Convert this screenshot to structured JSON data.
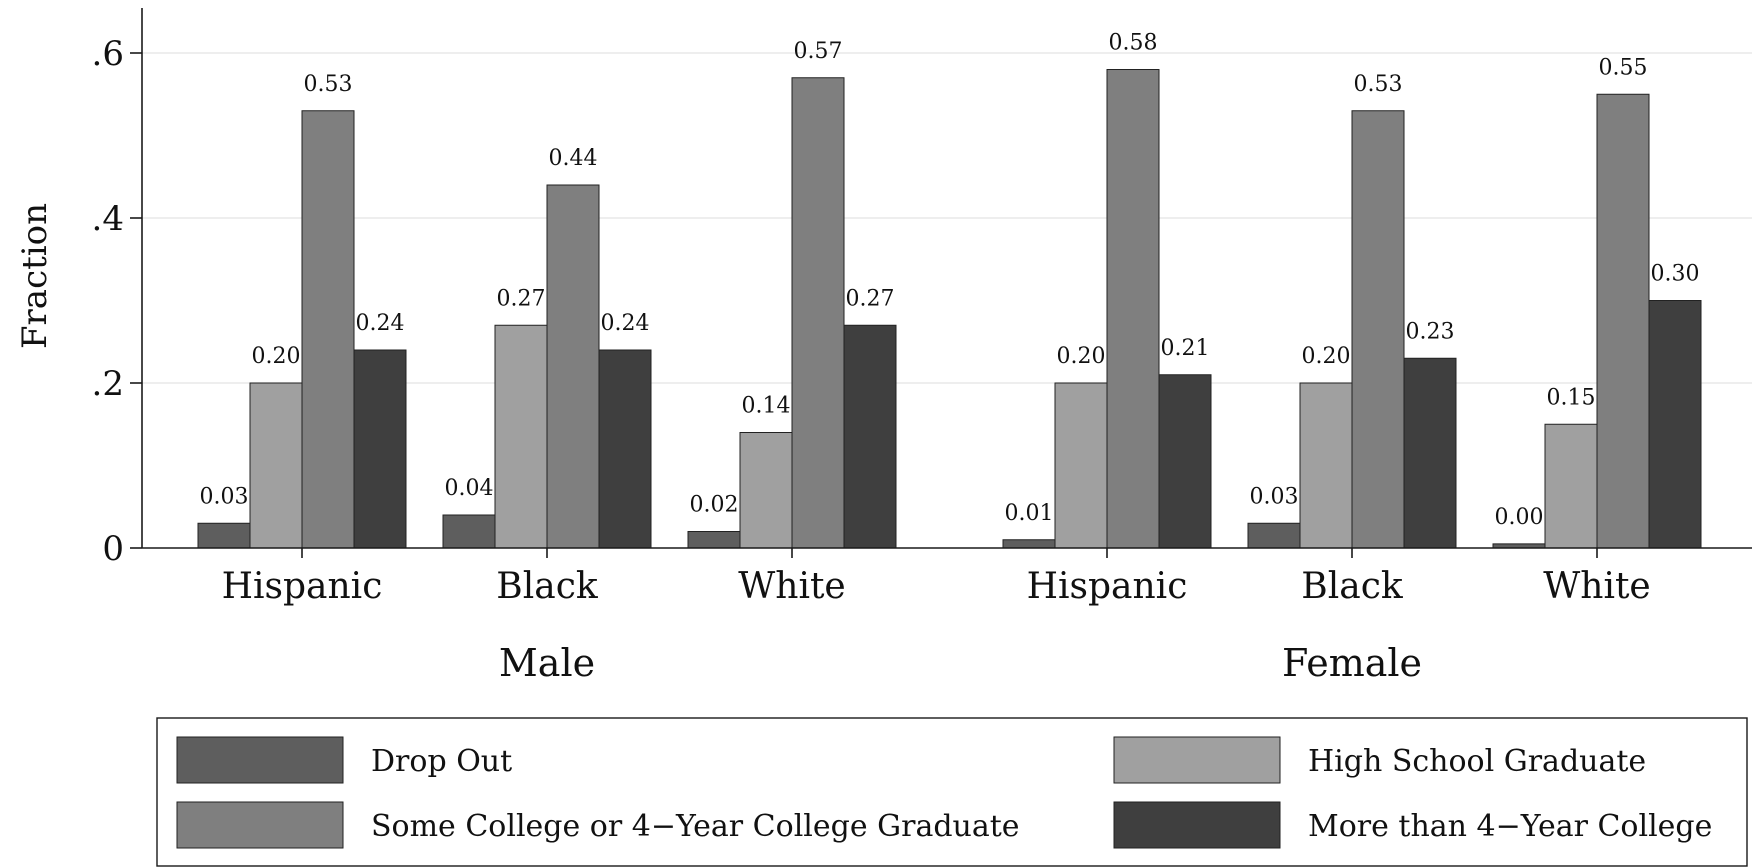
{
  "chart_data": {
    "type": "bar",
    "ylabel": "Fraction",
    "ylim": [
      0,
      0.66
    ],
    "yticks": [
      0,
      0.2,
      0.4,
      0.6
    ],
    "ytick_labels": [
      "0",
      ".2",
      ".4",
      ".6"
    ],
    "grid": true,
    "legend_position": "bottom",
    "groups": [
      {
        "label": "Male",
        "categories": [
          "Hispanic",
          "Black",
          "White"
        ],
        "series": [
          {
            "name": "Drop Out",
            "values": [
              0.03,
              0.04,
              0.02
            ],
            "labels": [
              "0.03",
              "0.04",
              "0.02"
            ]
          },
          {
            "name": "High School Graduate",
            "values": [
              0.2,
              0.27,
              0.14
            ],
            "labels": [
              "0.20",
              "0.27",
              "0.14"
            ]
          },
          {
            "name": "Some College or 4−Year College Graduate",
            "values": [
              0.53,
              0.44,
              0.57
            ],
            "labels": [
              "0.53",
              "0.44",
              "0.57"
            ]
          },
          {
            "name": "More than 4−Year College",
            "values": [
              0.24,
              0.24,
              0.27
            ],
            "labels": [
              "0.24",
              "0.24",
              "0.27"
            ]
          }
        ]
      },
      {
        "label": "Female",
        "categories": [
          "Hispanic",
          "Black",
          "White"
        ],
        "series": [
          {
            "name": "Drop Out",
            "values": [
              0.01,
              0.03,
              0.005
            ],
            "labels": [
              "0.01",
              "0.03",
              "0.00"
            ]
          },
          {
            "name": "High School Graduate",
            "values": [
              0.2,
              0.2,
              0.15
            ],
            "labels": [
              "0.20",
              "0.20",
              "0.15"
            ]
          },
          {
            "name": "Some College or 4−Year College Graduate",
            "values": [
              0.58,
              0.53,
              0.55
            ],
            "labels": [
              "0.58",
              "0.53",
              "0.55"
            ]
          },
          {
            "name": "More than 4−Year College",
            "values": [
              0.21,
              0.23,
              0.3
            ],
            "labels": [
              "0.21",
              "0.23",
              "0.30"
            ]
          }
        ]
      }
    ],
    "legend": [
      {
        "name": "Drop Out",
        "color": "#5e5e5e"
      },
      {
        "name": "High School Graduate",
        "color": "#a0a0a0"
      },
      {
        "name": "Some College or 4−Year College Graduate",
        "color": "#7f7f7f"
      },
      {
        "name": "More than 4−Year College",
        "color": "#3f3f3f"
      }
    ],
    "colors": [
      "#5e5e5e",
      "#a0a0a0",
      "#7f7f7f",
      "#3f3f3f"
    ]
  }
}
